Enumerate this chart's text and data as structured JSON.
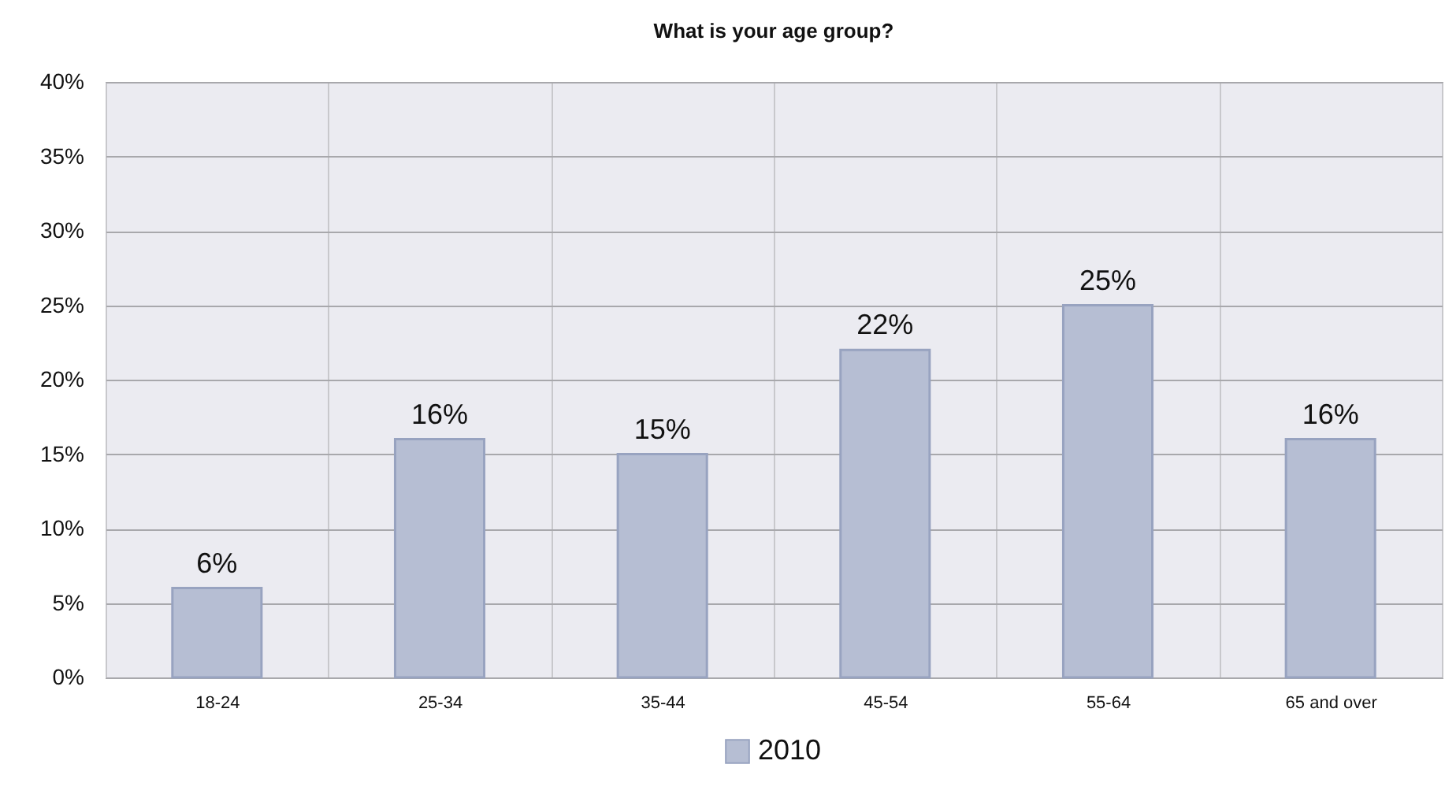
{
  "chart_data": {
    "type": "bar",
    "title": "What is your age group?",
    "categories": [
      "18-24",
      "25-34",
      "35-44",
      "45-54",
      "55-64",
      "65 and over"
    ],
    "series": [
      {
        "name": "2010",
        "color": "#b6bed3",
        "values": [
          6,
          16,
          15,
          22,
          25,
          16
        ],
        "value_labels": [
          "6%",
          "16%",
          "15%",
          "22%",
          "25%",
          "16%"
        ]
      }
    ],
    "ylim": [
      0,
      40
    ],
    "yticks": [
      {
        "value": 0,
        "label": "0%"
      },
      {
        "value": 5,
        "label": "5%"
      },
      {
        "value": 10,
        "label": "10%"
      },
      {
        "value": 15,
        "label": "15%"
      },
      {
        "value": 20,
        "label": "20%"
      },
      {
        "value": 25,
        "label": "25%"
      },
      {
        "value": 30,
        "label": "30%"
      },
      {
        "value": 35,
        "label": "35%"
      },
      {
        "value": 40,
        "label": "40%"
      }
    ],
    "grid": true,
    "legend": "bottom"
  }
}
